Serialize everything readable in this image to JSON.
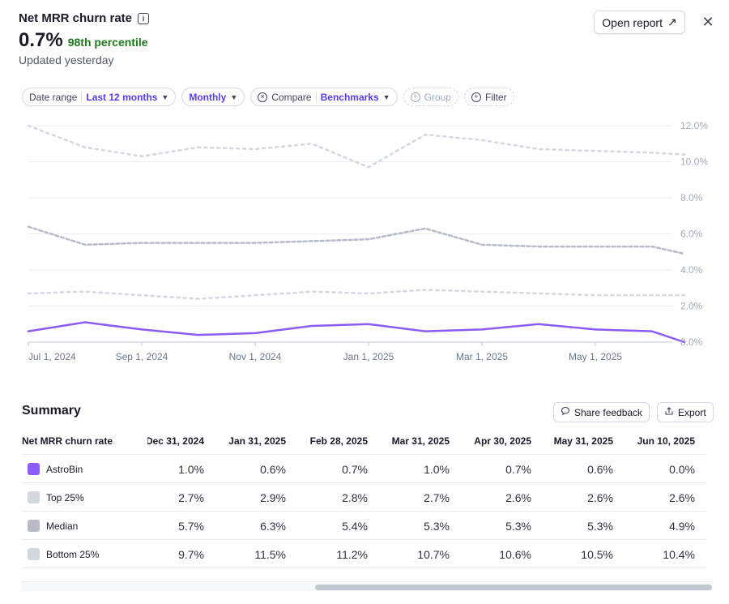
{
  "header": {
    "title": "Net MRR churn rate",
    "info_icon": "i",
    "value": "0.7%",
    "percentile": "98th percentile",
    "updated": "Updated yesterday",
    "open_report_label": "Open report",
    "open_report_icon": "↗",
    "close_icon": "✕"
  },
  "filters": {
    "date_range_label": "Date range",
    "date_range_value": "Last 12 months",
    "interval_value": "Monthly",
    "compare_label": "Compare",
    "compare_value": "Benchmarks",
    "group_label": "Group",
    "filter_label": "Filter"
  },
  "colors": {
    "accent": "#533afd",
    "astrobin": "#8b5cf6",
    "top25": "#d3d7de",
    "median": "#b7bcc6",
    "bottom25": "#d3d7de"
  },
  "chart_data": {
    "type": "line",
    "y_ticks": [
      "12.0%",
      "10.0%",
      "8.0%",
      "6.0%",
      "4.0%",
      "2.0%",
      "0.0%"
    ],
    "ylim": [
      0,
      12
    ],
    "x_ticks": [
      "Jul 1, 2024",
      "Sep 1, 2024",
      "Nov 1, 2024",
      "Jan 1, 2025",
      "Mar 1, 2025",
      "May 1, 2025"
    ],
    "x_tick_index": [
      0,
      2,
      4,
      6,
      8,
      10
    ],
    "x": [
      "Jun 30, 2024",
      "Jul 31, 2024",
      "Aug 31, 2024",
      "Sep 30, 2024",
      "Oct 31, 2024",
      "Nov 30, 2024",
      "Dec 31, 2024",
      "Jan 31, 2025",
      "Feb 28, 2025",
      "Mar 31, 2025",
      "Apr 30, 2025",
      "May 31, 2025",
      "Jun 10, 2025"
    ],
    "series": [
      {
        "name": "Bottom 25%",
        "style": "dotted",
        "values": [
          12.0,
          10.8,
          10.3,
          10.8,
          10.7,
          11.0,
          9.7,
          11.5,
          11.2,
          10.7,
          10.6,
          10.5,
          10.4
        ]
      },
      {
        "name": "Median",
        "style": "dashed",
        "values": [
          6.4,
          5.4,
          5.5,
          5.5,
          5.5,
          5.6,
          5.7,
          6.3,
          5.4,
          5.3,
          5.3,
          5.3,
          4.9
        ]
      },
      {
        "name": "Top 25%",
        "style": "dotted",
        "values": [
          2.7,
          2.8,
          2.6,
          2.4,
          2.6,
          2.8,
          2.7,
          2.9,
          2.8,
          2.7,
          2.6,
          2.6,
          2.6
        ]
      },
      {
        "name": "AstroBin",
        "style": "solid",
        "values": [
          0.6,
          1.1,
          0.7,
          0.4,
          0.5,
          0.9,
          1.0,
          0.6,
          0.7,
          1.0,
          0.7,
          0.6,
          0.0
        ]
      }
    ]
  },
  "summary": {
    "title": "Summary",
    "share_feedback_label": "Share feedback",
    "export_label": "Export",
    "metric_header": "Net MRR churn rate",
    "columns": [
      "Dec 31, 2024",
      "Jan 31, 2025",
      "Feb 28, 2025",
      "Mar 31, 2025",
      "Apr 30, 2025",
      "May 31, 2025",
      "Jun 10, 2025"
    ],
    "rows": [
      {
        "label": "AstroBin",
        "values": [
          "1.0%",
          "0.6%",
          "0.7%",
          "1.0%",
          "0.7%",
          "0.6%",
          "0.0%"
        ]
      },
      {
        "label": "Top 25%",
        "values": [
          "2.7%",
          "2.9%",
          "2.8%",
          "2.7%",
          "2.6%",
          "2.6%",
          "2.6%"
        ]
      },
      {
        "label": "Median",
        "values": [
          "5.7%",
          "6.3%",
          "5.4%",
          "5.3%",
          "5.3%",
          "5.3%",
          "4.9%"
        ]
      },
      {
        "label": "Bottom 25%",
        "values": [
          "9.7%",
          "11.5%",
          "11.2%",
          "10.7%",
          "10.6%",
          "10.5%",
          "10.4%"
        ]
      }
    ]
  }
}
